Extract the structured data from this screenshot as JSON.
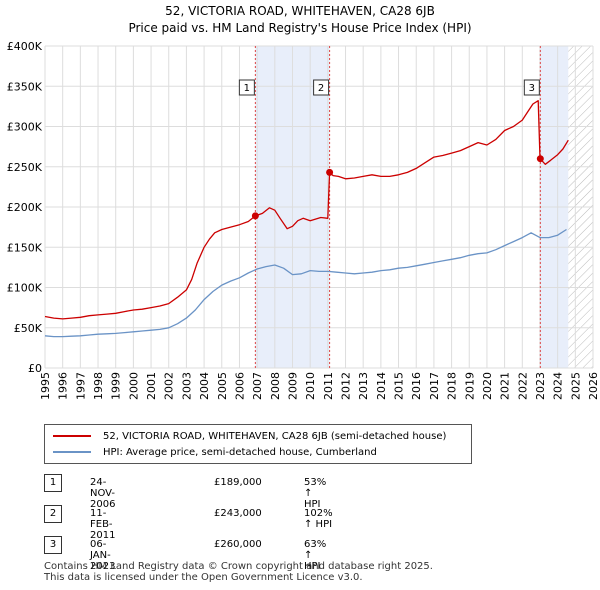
{
  "title_line1": "52, VICTORIA ROAD, WHITEHAVEN, CA28 6JB",
  "title_line2": "Price paid vs. HM Land Registry's House Price Index (HPI)",
  "chart_data": {
    "type": "line",
    "xlim": [
      1995,
      2026
    ],
    "ylim": [
      0,
      400000
    ],
    "x_ticks": [
      "1995",
      "1996",
      "1997",
      "1998",
      "1999",
      "2000",
      "2001",
      "2002",
      "2003",
      "2004",
      "2005",
      "2006",
      "2007",
      "2008",
      "2009",
      "2010",
      "2011",
      "2012",
      "2013",
      "2014",
      "2015",
      "2016",
      "2017",
      "2018",
      "2019",
      "2020",
      "2021",
      "2022",
      "2023",
      "2024",
      "2025",
      "2026"
    ],
    "y_ticks": [
      {
        "value": 0,
        "label": "£0"
      },
      {
        "value": 50000,
        "label": "£50K"
      },
      {
        "value": 100000,
        "label": "£100K"
      },
      {
        "value": 150000,
        "label": "£150K"
      },
      {
        "value": 200000,
        "label": "£200K"
      },
      {
        "value": 250000,
        "label": "£250K"
      },
      {
        "value": 300000,
        "label": "£300K"
      },
      {
        "value": 350000,
        "label": "£350K"
      },
      {
        "value": 400000,
        "label": "£400K"
      }
    ],
    "shaded_ranges": [
      [
        2006.9,
        2011.1
      ],
      [
        2023.0,
        2024.6
      ]
    ],
    "hatched_range": [
      2024.6,
      2026
    ],
    "series": [
      {
        "name": "52, VICTORIA ROAD, WHITEHAVEN, CA28 6JB (semi-detached house)",
        "color": "#cc0000",
        "x": [
          1995.0,
          1995.5,
          1996.0,
          1996.5,
          1997.0,
          1997.5,
          1998.0,
          1998.5,
          1999.0,
          1999.5,
          2000.0,
          2000.5,
          2001.0,
          2001.5,
          2002.0,
          2002.5,
          2003.0,
          2003.3,
          2003.6,
          2004.0,
          2004.3,
          2004.6,
          2005.0,
          2005.5,
          2006.0,
          2006.5,
          2006.9,
          2007.3,
          2007.7,
          2008.0,
          2008.3,
          2008.7,
          2009.0,
          2009.3,
          2009.6,
          2010.0,
          2010.3,
          2010.6,
          2011.0,
          2011.1,
          2011.3,
          2011.6,
          2012.0,
          2012.5,
          2013.0,
          2013.5,
          2014.0,
          2014.5,
          2015.0,
          2015.5,
          2016.0,
          2016.5,
          2017.0,
          2017.5,
          2018.0,
          2018.5,
          2019.0,
          2019.5,
          2020.0,
          2020.5,
          2021.0,
          2021.5,
          2022.0,
          2022.3,
          2022.6,
          2022.9,
          2023.0,
          2023.3,
          2023.6,
          2024.0,
          2024.3,
          2024.6
        ],
        "values": [
          64000,
          62000,
          61000,
          62000,
          63000,
          65000,
          66000,
          67000,
          68000,
          70000,
          72000,
          73000,
          75000,
          77000,
          80000,
          88000,
          97000,
          110000,
          130000,
          150000,
          160000,
          168000,
          172000,
          175000,
          178000,
          182000,
          189000,
          192000,
          199000,
          196000,
          186000,
          173000,
          176000,
          183000,
          186000,
          183000,
          185000,
          187000,
          186000,
          243000,
          239000,
          238000,
          235000,
          236000,
          238000,
          240000,
          238000,
          238000,
          240000,
          243000,
          248000,
          255000,
          262000,
          264000,
          267000,
          270000,
          275000,
          280000,
          277000,
          284000,
          295000,
          300000,
          308000,
          318000,
          328000,
          332000,
          260000,
          253000,
          258000,
          265000,
          272000,
          283000
        ]
      },
      {
        "name": "HPI: Average price, semi-detached house, Cumberland",
        "color": "#6a93c6",
        "x": [
          1995.0,
          1995.5,
          1996.0,
          1996.5,
          1997.0,
          1997.5,
          1998.0,
          1998.5,
          1999.0,
          1999.5,
          2000.0,
          2000.5,
          2001.0,
          2001.5,
          2002.0,
          2002.5,
          2003.0,
          2003.5,
          2004.0,
          2004.5,
          2005.0,
          2005.5,
          2006.0,
          2006.5,
          2007.0,
          2007.5,
          2008.0,
          2008.5,
          2009.0,
          2009.5,
          2010.0,
          2010.5,
          2011.0,
          2011.5,
          2012.0,
          2012.5,
          2013.0,
          2013.5,
          2014.0,
          2014.5,
          2015.0,
          2015.5,
          2016.0,
          2016.5,
          2017.0,
          2017.5,
          2018.0,
          2018.5,
          2019.0,
          2019.5,
          2020.0,
          2020.5,
          2021.0,
          2021.5,
          2022.0,
          2022.5,
          2023.0,
          2023.5,
          2024.0,
          2024.5
        ],
        "values": [
          40000,
          39000,
          39000,
          39500,
          40000,
          41000,
          42000,
          42500,
          43000,
          44000,
          45000,
          46000,
          47000,
          48000,
          50000,
          55000,
          62000,
          72000,
          85000,
          95000,
          103000,
          108000,
          112000,
          118000,
          123000,
          126000,
          128000,
          124000,
          116000,
          117000,
          121000,
          120000,
          120000,
          119000,
          118000,
          117000,
          118000,
          119000,
          121000,
          122000,
          124000,
          125000,
          127000,
          129000,
          131000,
          133000,
          135000,
          137000,
          140000,
          142000,
          143000,
          147000,
          152000,
          157000,
          162000,
          168000,
          162000,
          162000,
          165000,
          172000
        ]
      }
    ],
    "sales": [
      {
        "label": "1",
        "x": 2006.9,
        "price": 189000
      },
      {
        "label": "2",
        "x": 2011.1,
        "price": 243000
      },
      {
        "label": "3",
        "x": 2023.02,
        "price": 260000
      }
    ]
  },
  "legend": {
    "property_label": "52, VICTORIA ROAD, WHITEHAVEN, CA28 6JB (semi-detached house)",
    "hpi_label": "HPI: Average price, semi-detached house, Cumberland"
  },
  "transactions": [
    {
      "num": "1",
      "date": "24-NOV-2006",
      "price": "£189,000",
      "hpi": "53% ↑ HPI"
    },
    {
      "num": "2",
      "date": "11-FEB-2011",
      "price": "£243,000",
      "hpi": "102% ↑ HPI"
    },
    {
      "num": "3",
      "date": "06-JAN-2023",
      "price": "£260,000",
      "hpi": "63% ↑ HPI"
    }
  ],
  "footer": {
    "line1": "Contains HM Land Registry data © Crown copyright and database right 2025.",
    "line2": "This data is licensed under the Open Government Licence v3.0."
  },
  "colors": {
    "property": "#cc0000",
    "hpi": "#6a93c6",
    "shade": "#e8eefa",
    "grid": "#dddddd"
  }
}
